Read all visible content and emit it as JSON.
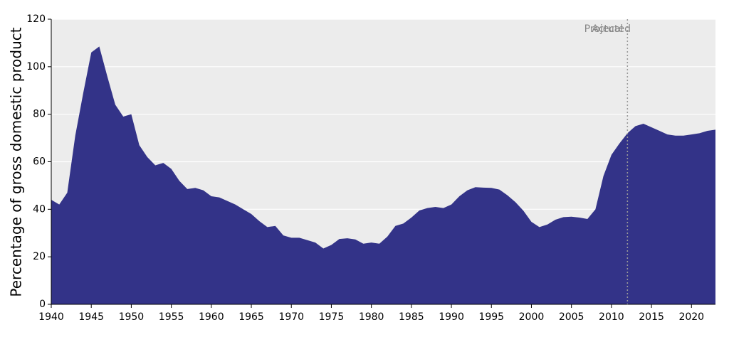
{
  "chart_data": {
    "type": "area",
    "y_label": "Percentage of gross domestic product",
    "x": [
      1940,
      1941,
      1942,
      1943,
      1944,
      1945,
      1946,
      1947,
      1948,
      1949,
      1950,
      1951,
      1952,
      1953,
      1954,
      1955,
      1956,
      1957,
      1958,
      1959,
      1960,
      1961,
      1962,
      1963,
      1964,
      1965,
      1966,
      1967,
      1968,
      1969,
      1970,
      1971,
      1972,
      1973,
      1974,
      1975,
      1976,
      1977,
      1978,
      1979,
      1980,
      1981,
      1982,
      1983,
      1984,
      1985,
      1986,
      1987,
      1988,
      1989,
      1990,
      1991,
      1992,
      1993,
      1994,
      1995,
      1996,
      1997,
      1998,
      1999,
      2000,
      2001,
      2002,
      2003,
      2004,
      2005,
      2006,
      2007,
      2008,
      2009,
      2010,
      2011,
      2012,
      2013,
      2014,
      2015,
      2016,
      2017,
      2018,
      2019,
      2020,
      2021,
      2022,
      2023
    ],
    "values": [
      44,
      42,
      47,
      71,
      89,
      106,
      108.5,
      96,
      84,
      79,
      80,
      67,
      62,
      58.5,
      59.5,
      57,
      52,
      48.5,
      49,
      48,
      45.5,
      45,
      43.5,
      42,
      40,
      38,
      35,
      32.5,
      33,
      29,
      28,
      28,
      27,
      26,
      23.5,
      25,
      27.5,
      27.8,
      27.3,
      25.5,
      26,
      25.5,
      28.5,
      33,
      34,
      36.5,
      39.5,
      40.5,
      41,
      40.5,
      42,
      45.5,
      48,
      49.3,
      49.1,
      49,
      48.3,
      45.9,
      43,
      39.4,
      34.7,
      32.5,
      33.6,
      35.6,
      36.7,
      36.9,
      36.5,
      35.9,
      40,
      54,
      62.9,
      67.7,
      72,
      75,
      76,
      74.5,
      73,
      71.5,
      71,
      71,
      71.5,
      72,
      73,
      73.5
    ],
    "color": "#333388",
    "xlim": [
      1940,
      2023
    ],
    "xticks": [
      1940,
      1945,
      1950,
      1955,
      1960,
      1965,
      1970,
      1975,
      1980,
      1985,
      1990,
      1995,
      2000,
      2005,
      2010,
      2015,
      2020
    ],
    "ylim": [
      0,
      120
    ],
    "yticks": [
      0,
      20,
      40,
      60,
      80,
      100,
      120
    ],
    "grid": true,
    "divider_x": 2012,
    "annotations": [
      "Actual",
      "Projected"
    ]
  }
}
